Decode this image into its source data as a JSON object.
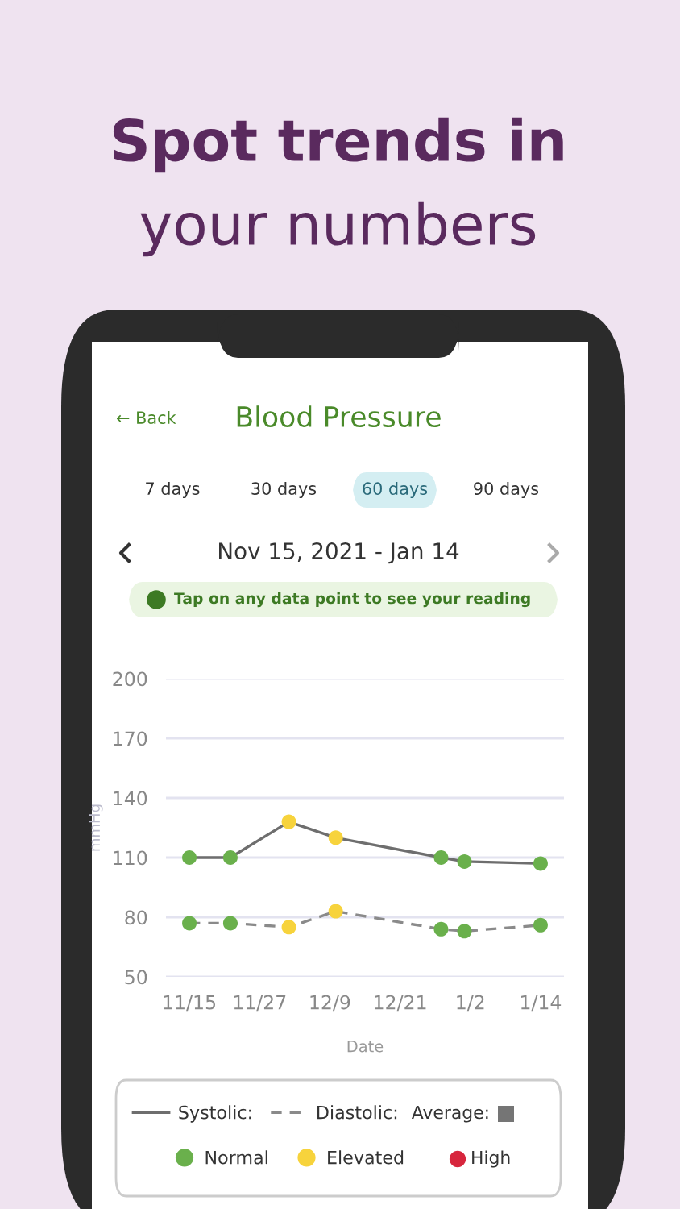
{
  "chart_data": {
    "type": "line",
    "title": "Blood Pressure",
    "subtitle": "Nov 15, 2021 - Jan 14",
    "xlabel": "Date",
    "ylabel": "mmHg",
    "annotations": [
      "Spot trends in",
      "your numbers",
      "← Back",
      "7 days",
      "30 days",
      "60 days",
      "90 days",
      "Tap on any data point to see your reading",
      "Average:",
      "High"
    ],
    "x": [
      "2021-11-15",
      "2021-11-22",
      "2021-12-02",
      "2021-12-10",
      "2021-12-28",
      "2022-01-01",
      "2022-01-14"
    ],
    "series": [
      {
        "name": "Systolic:",
        "color": "#6e6e6e",
        "line_style": "solid",
        "marker": "none",
        "values": [
          110,
          110,
          128,
          120,
          110,
          108,
          107
        ]
      },
      {
        "name": "Diastolic:",
        "color": "#8a8a8a",
        "line_style": "dashed",
        "marker": "none",
        "values": [
          77,
          77,
          75,
          83,
          74,
          73,
          76
        ]
      },
      {
        "name": "Normal",
        "type": "scatter",
        "marker": "circle",
        "color": "#6ab04c",
        "x": [
          "2021-11-15",
          "2021-11-15",
          "2021-11-22",
          "2021-11-22",
          "2021-12-28",
          "2021-12-28",
          "2022-01-01",
          "2022-01-01",
          "2022-01-14",
          "2022-01-14"
        ],
        "values": [
          110,
          77,
          110,
          77,
          110,
          74,
          108,
          73,
          107,
          76
        ]
      },
      {
        "name": "Elevated",
        "type": "scatter",
        "marker": "circle",
        "color": "#f7d33c",
        "x": [
          "2021-12-02",
          "2021-12-02",
          "2021-12-10",
          "2021-12-10"
        ],
        "values": [
          128,
          75,
          120,
          83
        ]
      }
    ],
    "xlim": [
      "2021-11-11",
      "2022-01-18"
    ],
    "xticks": [
      {
        "value": "2021-11-15",
        "label": "11/15"
      },
      {
        "value": "2021-11-27",
        "label": "11/27"
      },
      {
        "value": "2021-12-09",
        "label": "12/9"
      },
      {
        "value": "2021-12-21",
        "label": "12/21"
      },
      {
        "value": "2022-01-02",
        "label": "1/2"
      },
      {
        "value": "2022-01-14",
        "label": "1/14"
      }
    ],
    "ylim": [
      50,
      200
    ],
    "yticks": [
      50,
      80,
      110,
      140,
      170,
      200
    ],
    "grid": "y",
    "legend": "bottom"
  }
}
